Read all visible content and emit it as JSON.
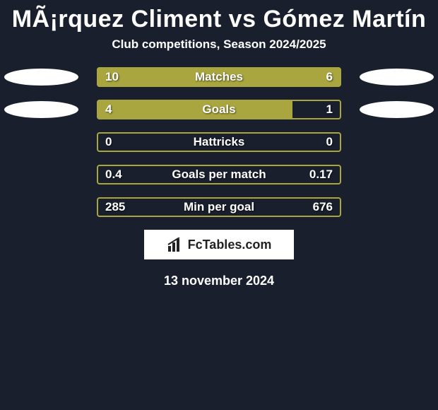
{
  "title": "MÃ¡rquez Climent vs Gómez Martín",
  "subtitle": "Club competitions, Season 2024/2025",
  "date": "13 november 2024",
  "logo_text": "FcTables.com",
  "colors": {
    "background": "#1a1f2e",
    "accent": "#a9a63f",
    "oval": "#ffffff",
    "text": "#ffffff"
  },
  "stats": [
    {
      "label": "Matches",
      "left_value": "10",
      "right_value": "6",
      "left_pct": 62.5,
      "show_ovals": true,
      "fill_side": "both",
      "fill_left": true,
      "fill_right": false
    },
    {
      "label": "Goals",
      "left_value": "4",
      "right_value": "1",
      "left_pct": 80,
      "show_ovals": true,
      "fill_side": "left"
    },
    {
      "label": "Hattricks",
      "left_value": "0",
      "right_value": "0",
      "left_pct": 0,
      "show_ovals": false
    },
    {
      "label": "Goals per match",
      "left_value": "0.4",
      "right_value": "0.17",
      "left_pct": 0,
      "show_ovals": false
    },
    {
      "label": "Min per goal",
      "left_value": "285",
      "right_value": "676",
      "left_pct": 0,
      "show_ovals": false
    }
  ]
}
